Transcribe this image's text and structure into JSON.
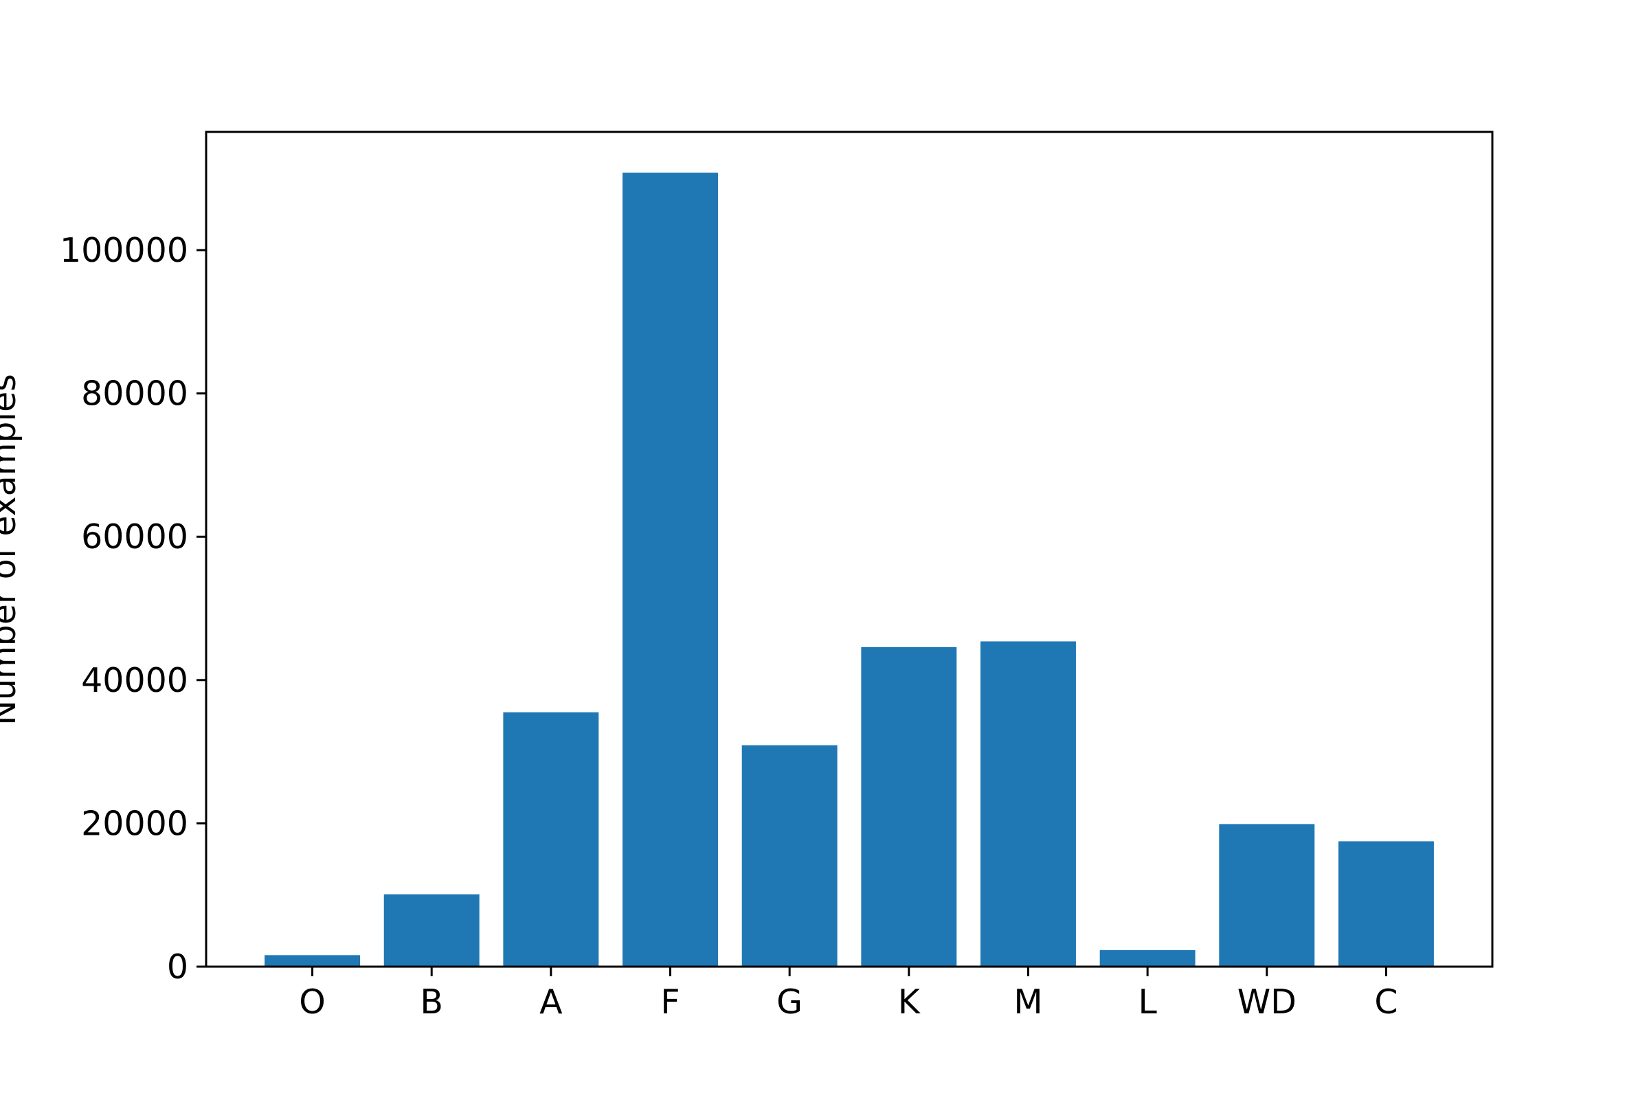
{
  "chart_data": {
    "type": "bar",
    "title": "",
    "xlabel": "",
    "ylabel": "Number of examples",
    "categories": [
      "O",
      "B",
      "A",
      "F",
      "G",
      "K",
      "M",
      "L",
      "WD",
      "C"
    ],
    "values": [
      1600,
      10100,
      35500,
      110800,
      30900,
      44600,
      45400,
      2300,
      19900,
      17500
    ],
    "ylim": [
      0,
      116500
    ],
    "yticks": [
      0,
      20000,
      40000,
      60000,
      80000,
      100000
    ],
    "ytick_labels": [
      "0",
      "20000",
      "40000",
      "60000",
      "80000",
      "100000"
    ],
    "grid": false,
    "legend": "none",
    "bar_color": "#1f77b4"
  }
}
